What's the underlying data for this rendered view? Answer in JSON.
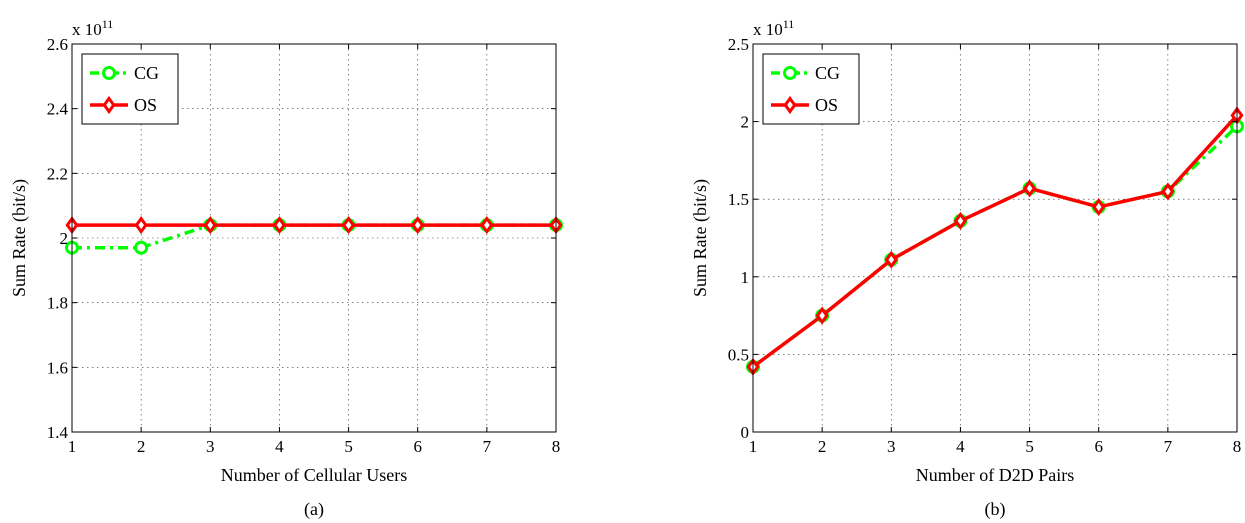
{
  "chart_data": [
    {
      "type": "line",
      "caption": "(a)",
      "exponent_label": "x 10",
      "exponent_power": "11",
      "xlabel": "Number of Cellular Users",
      "ylabel": "Sum Rate (bit/s)",
      "x": [
        1,
        2,
        3,
        4,
        5,
        6,
        7,
        8
      ],
      "xlim": [
        1,
        8
      ],
      "ylim": [
        1.4,
        2.6
      ],
      "xticks": [
        "1",
        "2",
        "3",
        "4",
        "5",
        "6",
        "7",
        "8"
      ],
      "yticks": [
        "1.4",
        "1.6",
        "1.8",
        "2",
        "2.2",
        "2.4",
        "2.6"
      ],
      "grid": true,
      "legend_position": "top-left",
      "series": [
        {
          "name": "CG",
          "color": "#00ff00",
          "marker": "circle",
          "style": "dash-dot",
          "values": [
            1.97,
            1.97,
            2.04,
            2.04,
            2.04,
            2.04,
            2.04,
            2.04
          ]
        },
        {
          "name": "OS",
          "color": "#ff0000",
          "marker": "diamond",
          "style": "solid",
          "values": [
            2.04,
            2.04,
            2.04,
            2.04,
            2.04,
            2.04,
            2.04,
            2.04
          ]
        }
      ]
    },
    {
      "type": "line",
      "caption": "(b)",
      "exponent_label": "x 10",
      "exponent_power": "11",
      "xlabel": "Number of D2D Pairs",
      "ylabel": "Sum Rate (bit/s)",
      "x": [
        1,
        2,
        3,
        4,
        5,
        6,
        7,
        8
      ],
      "xlim": [
        1,
        8
      ],
      "ylim": [
        0,
        2.5
      ],
      "xticks": [
        "1",
        "2",
        "3",
        "4",
        "5",
        "6",
        "7",
        "8"
      ],
      "yticks": [
        "0",
        "0.5",
        "1",
        "1.5",
        "2",
        "2.5"
      ],
      "grid": true,
      "legend_position": "top-left",
      "series": [
        {
          "name": "CG",
          "color": "#00ff00",
          "marker": "circle",
          "style": "dash-dot",
          "values": [
            0.42,
            0.75,
            1.11,
            1.36,
            1.57,
            1.45,
            1.55,
            1.97
          ]
        },
        {
          "name": "OS",
          "color": "#ff0000",
          "marker": "diamond",
          "style": "solid",
          "values": [
            0.42,
            0.75,
            1.11,
            1.36,
            1.57,
            1.45,
            1.55,
            2.04
          ]
        }
      ]
    }
  ]
}
